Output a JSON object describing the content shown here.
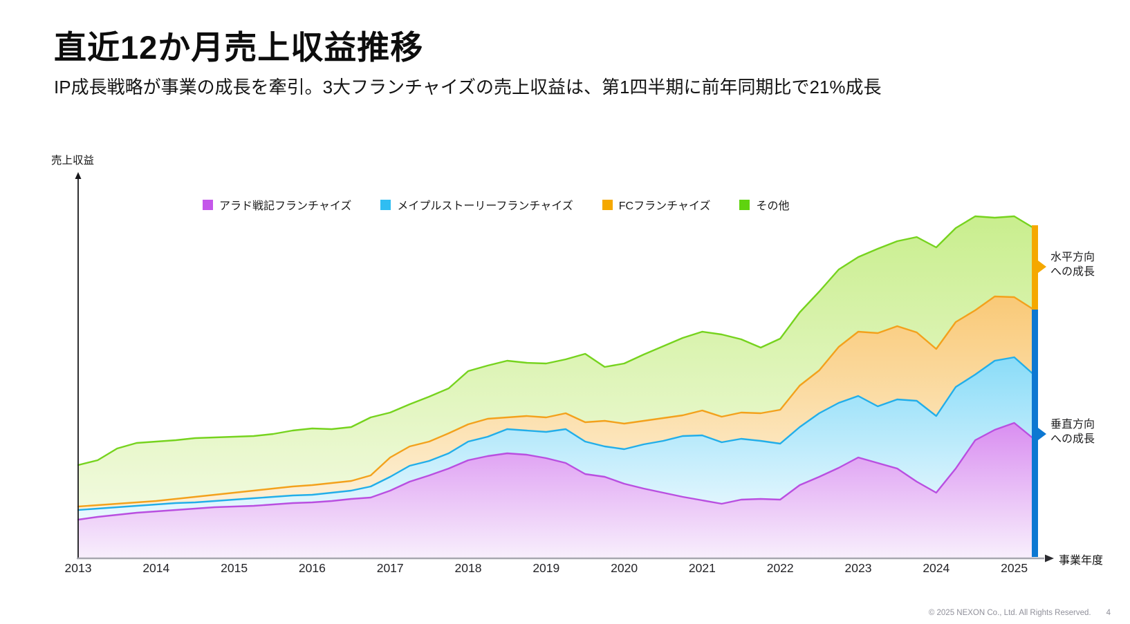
{
  "slide": {
    "title": "直近12か月売上収益推移",
    "subtitle": "IP成長戦略が事業の成長を牽引。3大フランチャイズの売上収益は、第1四半期に前年同期比で21%成長",
    "footer": {
      "copyright": "© 2025 NEXON Co., Ltd. All Rights Reserved.",
      "page_number": "4"
    }
  },
  "chart_data": {
    "type": "area",
    "stacked": true,
    "title": "",
    "ylabel": "売上収益",
    "xlabel": "事業年度",
    "unit": "relative revenue index (y-axis unlabeled in source)",
    "grid": false,
    "legend_position": "top-inside",
    "x_ticks": [
      "2013",
      "2014",
      "2015",
      "2016",
      "2017",
      "2018",
      "2019",
      "2020",
      "2021",
      "2022",
      "2023",
      "2024",
      "2025"
    ],
    "x": [
      2013,
      2013.25,
      2013.5,
      2013.75,
      2014,
      2014.25,
      2014.5,
      2014.75,
      2015,
      2015.25,
      2015.5,
      2015.75,
      2016,
      2016.25,
      2016.5,
      2016.75,
      2017,
      2017.25,
      2017.5,
      2017.75,
      2018,
      2018.25,
      2018.5,
      2018.75,
      2019,
      2019.25,
      2019.5,
      2019.75,
      2020,
      2020.25,
      2020.5,
      2020.75,
      2021,
      2021.25,
      2021.5,
      2021.75,
      2022,
      2022.25,
      2022.5,
      2022.75,
      2023,
      2023.25,
      2023.5,
      2023.75,
      2024,
      2024.25,
      2024.5,
      2024.75,
      2025,
      2025.25
    ],
    "ylim": [
      0,
      560
    ],
    "series": [
      {
        "name": "アラド戦記フランチャイズ",
        "swatch": "#c457ea",
        "line": "#b94fe0",
        "fill_top": "#d98ef1",
        "fill_bottom": "#f8effc",
        "values": [
          56,
          60,
          63,
          66,
          68,
          70,
          72,
          74,
          75,
          76,
          78,
          80,
          81,
          83,
          86,
          88,
          98,
          111,
          120,
          130,
          142,
          148,
          152,
          150,
          145,
          138,
          122,
          118,
          108,
          101,
          95,
          89,
          84,
          79,
          85,
          86,
          85,
          106,
          118,
          131,
          146,
          138,
          130,
          111,
          95,
          130,
          171,
          186,
          196,
          173
        ]
      },
      {
        "name": "メイプルストーリーフランチャイズ",
        "swatch": "#2fbdf2",
        "line": "#22aee9",
        "fill_top": "#8adcf8",
        "fill_bottom": "#e9f8fe",
        "values": [
          14,
          12,
          11,
          10,
          10,
          10,
          9,
          9,
          10,
          11,
          11,
          11,
          11,
          12,
          12,
          16,
          20,
          23,
          21,
          22,
          27,
          28,
          35,
          35,
          38,
          49,
          47,
          44,
          50,
          64,
          75,
          88,
          94,
          89,
          88,
          84,
          81,
          84,
          92,
          94,
          89,
          82,
          100,
          117,
          111,
          118,
          95,
          100,
          95,
          93
        ]
      },
      {
        "name": "FCフランチャイズ",
        "swatch": "#f5a800",
        "line": "#f3a11c",
        "fill_top": "#f9c977",
        "fill_bottom": "#fdf2da",
        "values": [
          5,
          5,
          5,
          5,
          5,
          6,
          8,
          9,
          10,
          11,
          12,
          13,
          14,
          14,
          14,
          16,
          28,
          28,
          28,
          29,
          25,
          26,
          17,
          21,
          21,
          23,
          28,
          37,
          37,
          34,
          33,
          30,
          36,
          37,
          38,
          40,
          49,
          60,
          62,
          81,
          93,
          106,
          106,
          99,
          97,
          94,
          93,
          93,
          87,
          94
        ]
      },
      {
        "name": "その他",
        "swatch": "#5fd30f",
        "line": "#76d31e",
        "fill_top": "#c9ee8e",
        "fill_bottom": "#f1fadd",
        "values": [
          60,
          65,
          80,
          86,
          86,
          85,
          85,
          83,
          81,
          79,
          79,
          81,
          82,
          78,
          78,
          84,
          65,
          61,
          65,
          65,
          77,
          77,
          82,
          77,
          78,
          78,
          99,
          78,
          87,
          96,
          104,
          112,
          114,
          119,
          106,
          95,
          103,
          106,
          114,
          112,
          108,
          122,
          123,
          138,
          147,
          136,
          136,
          114,
          117,
          118
        ]
      }
    ],
    "annotations": [
      {
        "line1": "水平方向",
        "line2": "への成長",
        "bar_color": "#f5a800",
        "marks": "その他 segment at latest period"
      },
      {
        "line1": "垂直方向",
        "line2": "への成長",
        "bar_color": "#0d78d2",
        "marks": "3大フランチャイズ segments at latest period"
      }
    ]
  }
}
